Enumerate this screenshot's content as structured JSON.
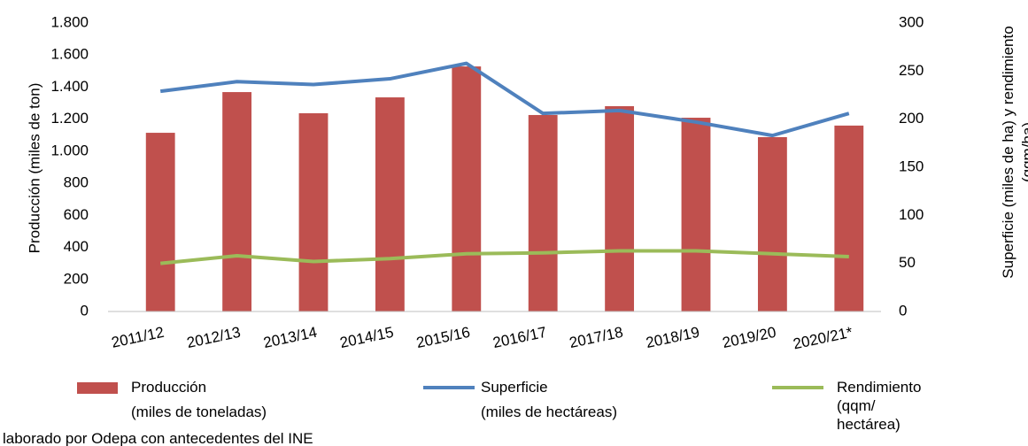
{
  "chart_data": {
    "type": "bar_line",
    "ylabel": "Producción (miles de ton)",
    "y2label": "Superficie (miles de ha) y rendimiento\n(qqm/ha)",
    "note": "laborado por Odepa con antecedentes del INE",
    "categories": [
      "2011/12",
      "2012/13",
      "2013/14",
      "2014/15",
      "2015/16",
      "2016/17",
      "2017/18",
      "2018/19",
      "2019/20",
      "2020/21*"
    ],
    "series": [
      {
        "name": "Producción\n(miles de toneladas)",
        "type": "bar",
        "color": "#c0504d",
        "values": [
          1115,
          1369,
          1237,
          1336,
          1529,
          1226,
          1281,
          1209,
          1088,
          1160
        ]
      },
      {
        "name": "Superficie\n(miles de hectáreas)",
        "type": "line",
        "axis": "y2",
        "color": "#4f81bd",
        "values": [
          229,
          239,
          236,
          242,
          258,
          206,
          209,
          197,
          183,
          206
        ]
      },
      {
        "name": "Rendimiento\n(qqm/\nhectárea)",
        "type": "line",
        "axis": "y2",
        "color": "#9bbb59",
        "values": [
          50,
          58,
          52,
          55,
          60,
          61,
          63,
          63,
          60,
          57
        ]
      }
    ],
    "ylim": [
      0,
      1800
    ],
    "yticks": [
      0,
      200,
      400,
      600,
      800,
      {
        "value": 1000,
        "label": "1.000"
      },
      {
        "value": 1200,
        "label": "1.200"
      },
      {
        "value": 1400,
        "label": "1.400"
      },
      {
        "value": 1600,
        "label": "1.600"
      },
      {
        "value": 1800,
        "label": "1.800"
      }
    ],
    "y2lim": [
      0,
      300
    ],
    "y2ticks": [
      0,
      50,
      100,
      150,
      200,
      250,
      300
    ],
    "grid": false
  }
}
